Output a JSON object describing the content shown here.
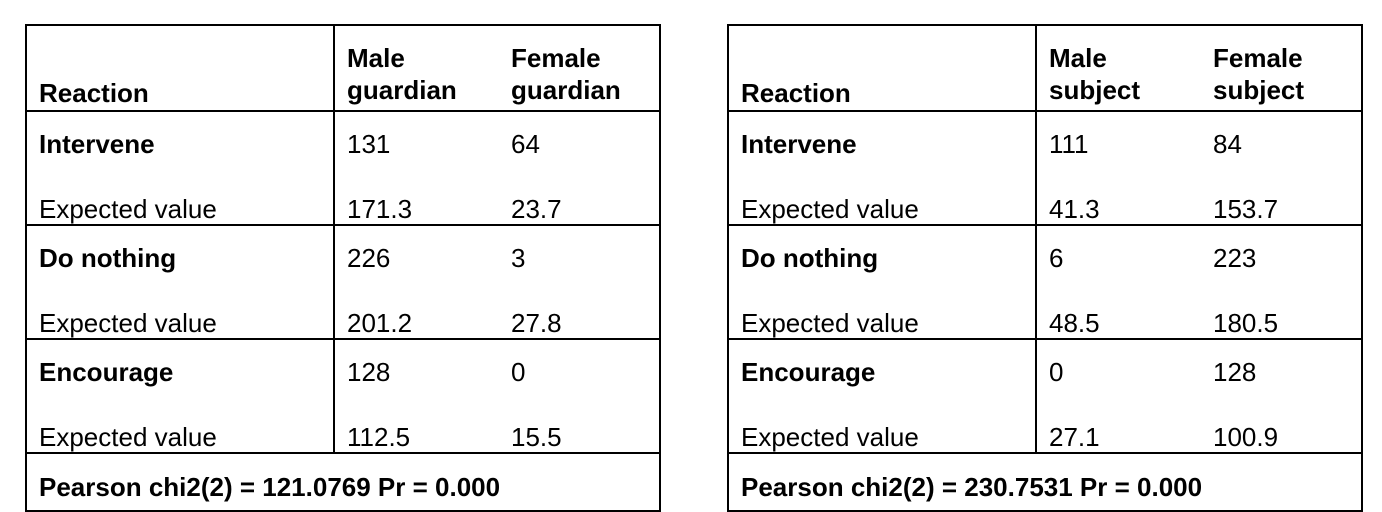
{
  "tables": [
    {
      "headers": {
        "reaction": "Reaction",
        "col1": [
          "Male",
          "guardian"
        ],
        "col2": [
          "Female",
          "guardian"
        ]
      },
      "rows": [
        {
          "label": "Intervene",
          "obs": [
            "131",
            "64"
          ],
          "exp_label": "Expected value",
          "exp": [
            "171.3",
            "23.7"
          ]
        },
        {
          "label": "Do nothing",
          "obs": [
            "226",
            "3"
          ],
          "exp_label": "Expected value",
          "exp": [
            "201.2",
            "27.8"
          ]
        },
        {
          "label": "Encourage",
          "obs": [
            "128",
            "0"
          ],
          "exp_label": "Expected value",
          "exp": [
            "112.5",
            "15.5"
          ]
        }
      ],
      "footer": "Pearson chi2(2) = 121.0769  Pr = 0.000"
    },
    {
      "headers": {
        "reaction": "Reaction",
        "col1": [
          "Male",
          "subject"
        ],
        "col2": [
          "Female",
          "subject"
        ]
      },
      "rows": [
        {
          "label": "Intervene",
          "obs": [
            "111",
            "84"
          ],
          "exp_label": "Expected value",
          "exp": [
            "41.3",
            "153.7"
          ]
        },
        {
          "label": "Do nothing",
          "obs": [
            "6",
            "223"
          ],
          "exp_label": "Expected value",
          "exp": [
            "48.5",
            "180.5"
          ]
        },
        {
          "label": "Encourage",
          "obs": [
            "0",
            "128"
          ],
          "exp_label": "Expected value",
          "exp": [
            "27.1",
            "100.9"
          ]
        }
      ],
      "footer": "Pearson chi2(2) = 230.7531  Pr = 0.000"
    }
  ]
}
